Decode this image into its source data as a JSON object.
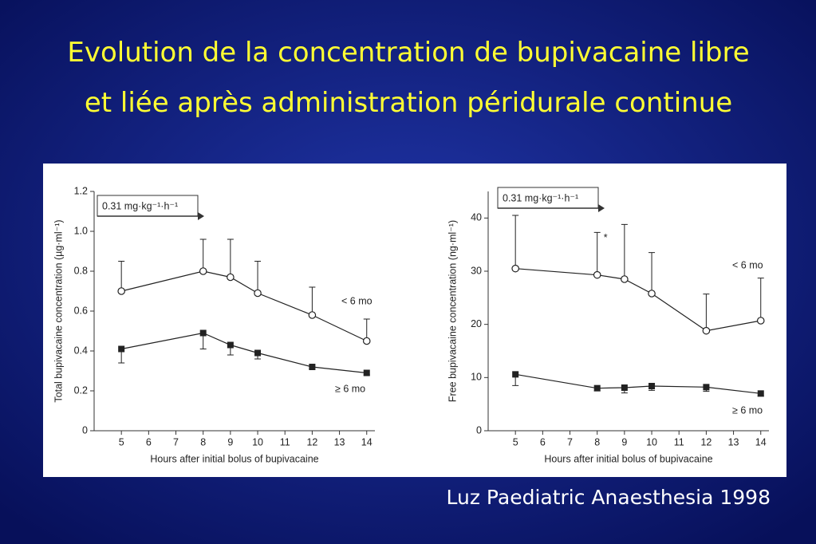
{
  "title": [
    "Evolution de la concentration de bupivacaine libre",
    "et liée après administration péridurale continue"
  ],
  "citation": "Luz Paediatric Anaesthesia 1998",
  "chart_data": [
    {
      "type": "line",
      "ylabel": "Total bupivacaine concentration (µg·ml⁻¹)",
      "xlabel": "Hours after initial bolus of bupivacaine",
      "annotation": "0.31 mg·kg⁻¹·h⁻¹",
      "xlim": [
        4,
        14.3
      ],
      "xticks": [
        5,
        6,
        7,
        8,
        9,
        10,
        11,
        12,
        13,
        14
      ],
      "ylim": [
        0,
        1.2
      ],
      "yticks": [
        0,
        0.2,
        0.4,
        0.6,
        0.8,
        {
          "value": 1,
          "label": "1.0"
        },
        {
          "value": 1.2,
          "label": "1.2"
        }
      ],
      "series": [
        {
          "name": "< 6 mo",
          "color": "#222222",
          "marker": "circle-open",
          "error_direction": "up",
          "x": [
            5,
            8,
            9,
            10,
            12,
            14
          ],
          "values": [
            0.7,
            0.8,
            0.77,
            0.69,
            0.58,
            0.45
          ],
          "errors": [
            0.15,
            0.16,
            0.19,
            0.16,
            0.14,
            0.11
          ]
        },
        {
          "name": "≥ 6 mo",
          "color": "#222222",
          "marker": "square",
          "error_direction": "down",
          "x": [
            5,
            8,
            9,
            10,
            12,
            14
          ],
          "values": [
            0.41,
            0.49,
            0.43,
            0.39,
            0.32,
            0.29
          ],
          "errors": [
            0.07,
            0.08,
            0.05,
            0.03,
            0.01,
            0.01
          ]
        }
      ]
    },
    {
      "type": "line",
      "ylabel": "Free bupivacaine concentration (ng·ml⁻¹)",
      "xlabel": "Hours after initial bolus of bupivacaine",
      "annotation": "0.31 mg·kg⁻¹·h⁻¹",
      "marker_note": "*",
      "xlim": [
        4,
        14.3
      ],
      "xticks": [
        5,
        6,
        7,
        8,
        9,
        10,
        11,
        12,
        13,
        14
      ],
      "ylim": [
        0,
        45
      ],
      "yticks": [
        0,
        10,
        20,
        30,
        40
      ],
      "series": [
        {
          "name": "< 6 mo",
          "color": "#222222",
          "marker": "circle-open",
          "error_direction": "up",
          "x": [
            5,
            8,
            9,
            10,
            12,
            14
          ],
          "values": [
            30.5,
            29.3,
            28.5,
            25.8,
            18.8,
            20.7
          ],
          "errors": [
            10,
            8,
            10.3,
            7.7,
            6.9,
            8
          ]
        },
        {
          "name": "≥ 6 mo",
          "color": "#222222",
          "marker": "square",
          "error_direction": "down",
          "x": [
            5,
            8,
            9,
            10,
            12,
            14
          ],
          "values": [
            10.6,
            8,
            8.1,
            8.4,
            8.2,
            7
          ],
          "errors": [
            2.1,
            0.5,
            1,
            0.8,
            0.8,
            0.5
          ]
        }
      ]
    }
  ]
}
